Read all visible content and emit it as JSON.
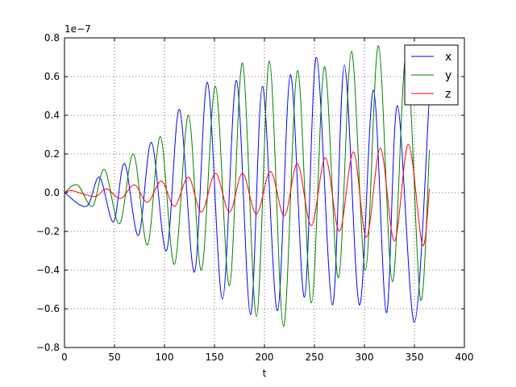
{
  "chart_data": {
    "type": "line",
    "offset_text": "1e−7",
    "xlabel": "t",
    "xlim": [
      0,
      400
    ],
    "xticks": [
      0,
      50,
      100,
      150,
      200,
      250,
      300,
      350,
      400
    ],
    "ylim": [
      -0.8,
      0.8
    ],
    "yticks": [
      {
        "value": -0.8,
        "label": "−0.8"
      },
      {
        "value": -0.6,
        "label": "−0.6"
      },
      {
        "value": -0.4,
        "label": "−0.4"
      },
      {
        "value": -0.2,
        "label": "−0.2"
      },
      {
        "value": 0,
        "label": "0.0"
      },
      0.2,
      0.4,
      0.6,
      0.8
    ],
    "grid": true,
    "legend": "upper right",
    "series": [
      {
        "name": "x",
        "color": "#0000ff",
        "x": [
          0,
          22,
          35,
          49,
          60,
          74,
          87,
          102,
          115,
          130,
          143,
          158,
          172,
          186,
          198,
          213,
          226,
          240,
          252,
          268,
          280,
          295,
          309,
          322,
          333,
          350,
          365
        ],
        "values": [
          0,
          -0.07,
          0.08,
          -0.15,
          0.15,
          -0.22,
          0.26,
          -0.3,
          0.43,
          -0.41,
          0.57,
          -0.55,
          0.58,
          -0.63,
          0.55,
          -0.61,
          0.61,
          -0.54,
          0.7,
          -0.58,
          0.66,
          -0.58,
          0.53,
          -0.62,
          0.45,
          -0.67,
          0.5
        ]
      },
      {
        "name": "y",
        "color": "#008000",
        "x": [
          0,
          13,
          28,
          40,
          55,
          69,
          83,
          96,
          110,
          124,
          137,
          151,
          165,
          178,
          192,
          205,
          219,
          233,
          247,
          260,
          274,
          287,
          301,
          314,
          328,
          342,
          356,
          365
        ],
        "values": [
          0,
          0.04,
          -0.07,
          0.12,
          -0.16,
          0.2,
          -0.27,
          0.29,
          -0.37,
          0.4,
          -0.4,
          0.55,
          -0.48,
          0.67,
          -0.64,
          0.68,
          -0.69,
          0.63,
          -0.57,
          0.65,
          -0.44,
          0.73,
          -0.4,
          0.76,
          -0.46,
          0.72,
          -0.55,
          0.22
        ]
      },
      {
        "name": "z",
        "color": "#ff0000",
        "x": [
          0,
          8,
          30,
          42,
          56,
          70,
          83,
          97,
          110,
          124,
          137,
          151,
          165,
          178,
          192,
          206,
          220,
          233,
          247,
          261,
          275,
          289,
          302,
          316,
          330,
          344,
          358,
          365
        ],
        "values": [
          0,
          0.01,
          -0.02,
          0.02,
          -0.03,
          0.04,
          -0.05,
          0.06,
          -0.07,
          0.08,
          -0.1,
          0.1,
          -0.1,
          0.1,
          -0.11,
          0.11,
          -0.12,
          0.15,
          -0.17,
          0.18,
          -0.2,
          0.21,
          -0.23,
          0.23,
          -0.25,
          0.25,
          -0.27,
          0.02
        ]
      }
    ]
  }
}
